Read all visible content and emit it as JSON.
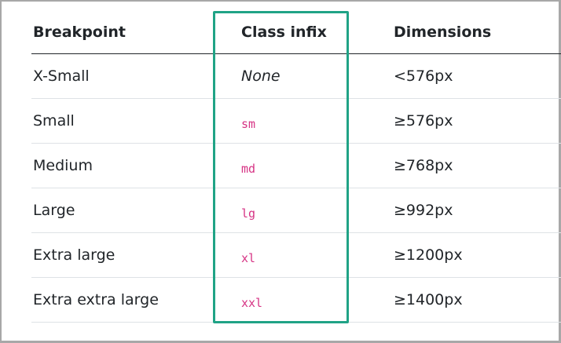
{
  "table": {
    "headers": [
      "Breakpoint",
      "Class infix",
      "Dimensions"
    ],
    "rows": [
      {
        "breakpoint": "X-Small",
        "infix": "None",
        "dimensions": "<576px"
      },
      {
        "breakpoint": "Small",
        "infix": "sm",
        "dimensions": "≥576px"
      },
      {
        "breakpoint": "Medium",
        "infix": "md",
        "dimensions": "≥768px"
      },
      {
        "breakpoint": "Large",
        "infix": "lg",
        "dimensions": "≥992px"
      },
      {
        "breakpoint": "Extra large",
        "infix": "xl",
        "dimensions": "≥1200px"
      },
      {
        "breakpoint": "Extra extra large",
        "infix": "xxl",
        "dimensions": "≥1400px"
      }
    ]
  },
  "colors": {
    "highlight": "#20a386",
    "code": "#d63384",
    "text": "#212529"
  }
}
